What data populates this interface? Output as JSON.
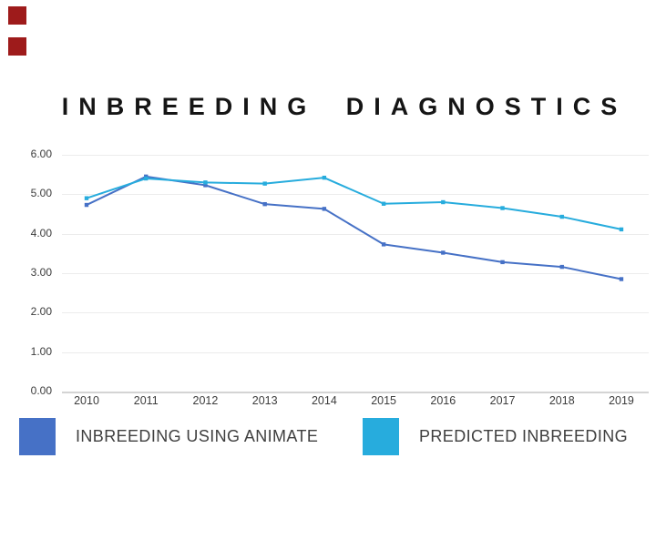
{
  "page": {
    "background": "#ffffff"
  },
  "decorations": {
    "squares": [
      {
        "name": "red-square-placeholder-1",
        "color": "#9E1B1B"
      },
      {
        "name": "red-square-placeholder-2",
        "color": "#9E1B1B"
      }
    ]
  },
  "chart_data": {
    "type": "line",
    "title": "INBREEDING DIAGNOSTICS",
    "categories": [
      "2010",
      "2011",
      "2012",
      "2013",
      "2014",
      "2015",
      "2016",
      "2017",
      "2018",
      "2019"
    ],
    "series": [
      {
        "name": "INBREEDING USING ANIMATE",
        "color": "#4671C6",
        "values": [
          4.73,
          5.45,
          5.23,
          4.75,
          4.63,
          3.73,
          3.52,
          3.28,
          3.16,
          2.85
        ]
      },
      {
        "name": "PREDICTED INBREEDING",
        "color": "#27ACDD",
        "values": [
          4.9,
          5.4,
          5.3,
          5.27,
          5.42,
          4.76,
          4.8,
          4.65,
          4.43,
          4.11
        ]
      }
    ],
    "xlabel": "",
    "ylabel": "",
    "ylim": [
      0,
      6
    ],
    "yticks": [
      "0.00",
      "1.00",
      "2.00",
      "3.00",
      "4.00",
      "5.00",
      "6.00"
    ],
    "grid": true,
    "legend_position": "bottom"
  }
}
